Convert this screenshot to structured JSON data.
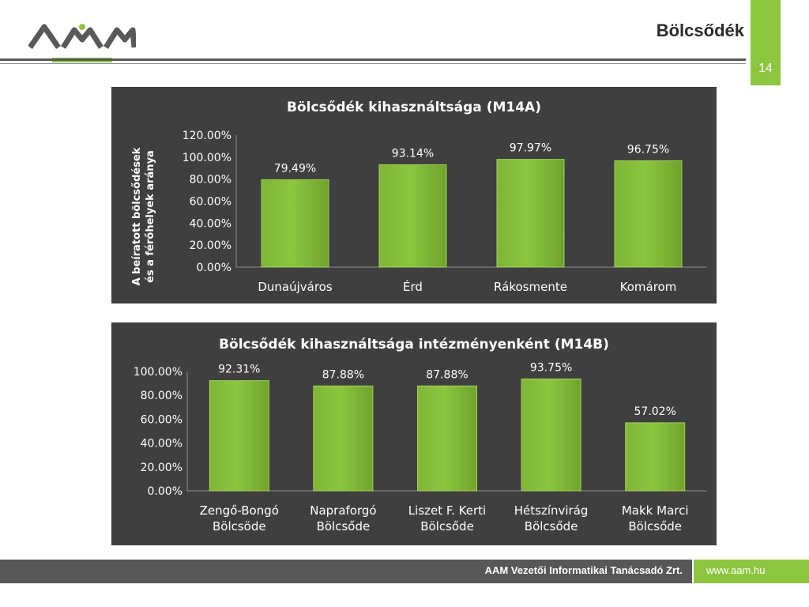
{
  "header": {
    "title": "Bölcsődék",
    "page_number": "14"
  },
  "footer": {
    "company": "AAM Vezetői Informatikai Tanácsadó Zrt.",
    "url": "www.aam.hu"
  },
  "colors": {
    "accent": "#8cc63f",
    "chart_bg": "#3f3f3f",
    "bar": "#8cc63f",
    "footer_dark": "#575757"
  },
  "chart_data": [
    {
      "type": "bar",
      "title": "Bölcsődék kihasználtsága  (M14A)",
      "ylabel_lines": [
        "A beíratott bölcsődések",
        "és a férőhelyek aránya"
      ],
      "categories": [
        "Dunaújváros",
        "Érd",
        "Rákosmente",
        "Komárom"
      ],
      "values": [
        79.49,
        93.14,
        97.97,
        96.75
      ],
      "value_labels": [
        "79.49%",
        "93.14%",
        "97.97%",
        "96.75%"
      ],
      "ylim": [
        0,
        120
      ],
      "yticks": [
        0,
        20,
        40,
        60,
        80,
        100,
        120
      ],
      "ytick_labels": [
        "0.00%",
        "20.00%",
        "40.00%",
        "60.00%",
        "80.00%",
        "100.00%",
        "120.00%"
      ],
      "grid": false,
      "legend": "none"
    },
    {
      "type": "bar",
      "title": "Bölcsődék kihasználtsága intézményenként (M14B)",
      "categories": [
        [
          "Zengő-Bongó",
          "Bölcsöde"
        ],
        [
          "Napraforgó",
          "Bölcsőde"
        ],
        [
          "Liszet F. Kerti",
          "Bölcsőde"
        ],
        [
          "Hétszínvirág",
          "Bölcsőde"
        ],
        [
          "Makk Marci",
          "Bölcsőde"
        ]
      ],
      "values": [
        92.31,
        87.88,
        87.88,
        93.75,
        57.02
      ],
      "value_labels": [
        "92.31%",
        "87.88%",
        "87.88%",
        "93.75%",
        "57.02%"
      ],
      "ylim": [
        0,
        100
      ],
      "yticks": [
        0,
        20,
        40,
        60,
        80,
        100
      ],
      "ytick_labels": [
        "0.00%",
        "20.00%",
        "40.00%",
        "60.00%",
        "80.00%",
        "100.00%"
      ],
      "grid": false,
      "legend": "none"
    }
  ]
}
